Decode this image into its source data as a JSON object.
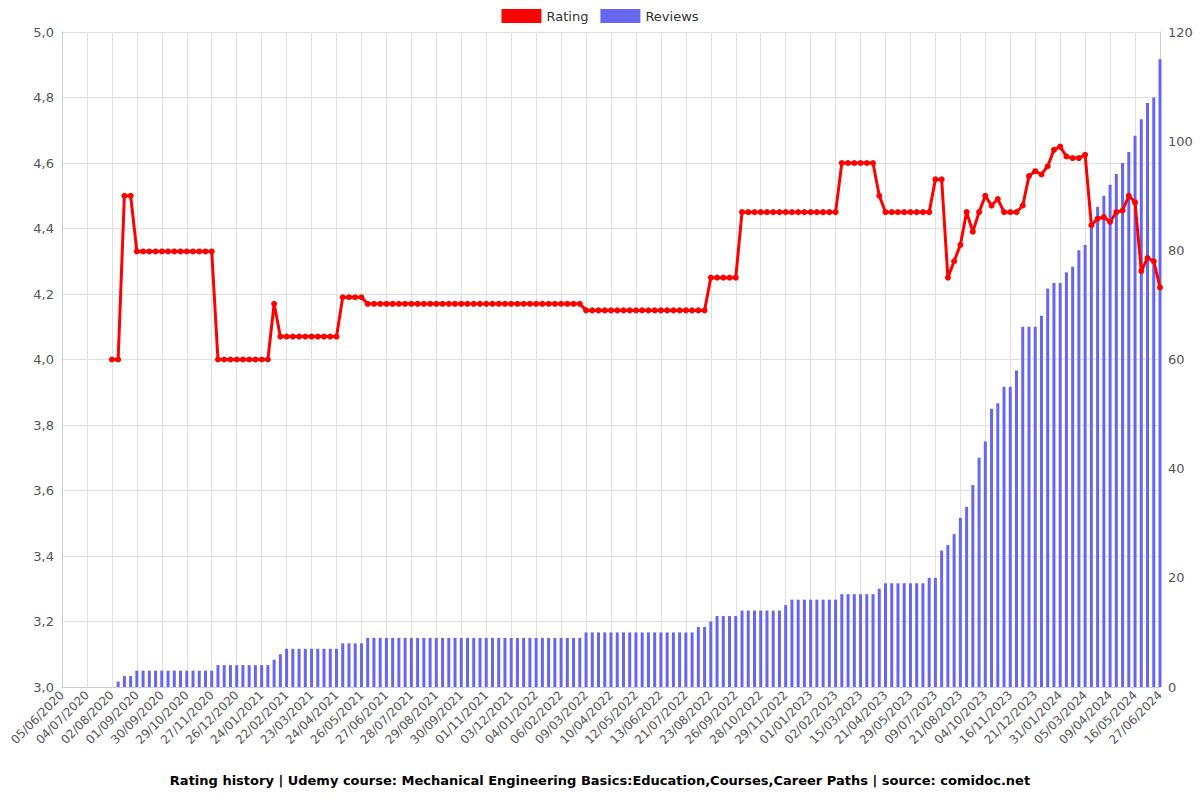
{
  "chart_data": {
    "type": "line",
    "title": "Rating history | Udemy course: Mechanical Engineering Basics:Education,Courses,Career Paths | source: comidoc.net",
    "categories": [
      "05/06/2020",
      null,
      null,
      null,
      "04/07/2020",
      null,
      null,
      null,
      "02/08/2020",
      null,
      null,
      null,
      "01/09/2020",
      null,
      null,
      null,
      "30/09/2020",
      null,
      null,
      null,
      "29/10/2020",
      null,
      null,
      null,
      "27/11/2020",
      null,
      null,
      null,
      "26/12/2020",
      null,
      null,
      null,
      "24/01/2021",
      null,
      null,
      null,
      "22/02/2021",
      null,
      null,
      null,
      "23/03/2021",
      null,
      null,
      null,
      "24/04/2021",
      null,
      null,
      null,
      "26/05/2021",
      null,
      null,
      null,
      "27/06/2021",
      null,
      null,
      null,
      "28/07/2021",
      null,
      null,
      null,
      "29/08/2021",
      null,
      null,
      null,
      "30/09/2021",
      null,
      null,
      null,
      "01/11/2021",
      null,
      null,
      null,
      "03/12/2021",
      null,
      null,
      null,
      "04/01/2022",
      null,
      null,
      null,
      "06/02/2022",
      null,
      null,
      null,
      "09/03/2022",
      null,
      null,
      null,
      "10/04/2022",
      null,
      null,
      null,
      "12/05/2022",
      null,
      null,
      null,
      "13/06/2022",
      null,
      null,
      null,
      "21/07/2022",
      null,
      null,
      null,
      "23/08/2022",
      null,
      null,
      null,
      "26/09/2022",
      null,
      null,
      null,
      "28/10/2022",
      null,
      null,
      null,
      "29/11/2022",
      null,
      null,
      null,
      "01/01/2023",
      null,
      null,
      null,
      "02/02/2023",
      null,
      null,
      null,
      "15/03/2023",
      null,
      null,
      null,
      "21/04/2023",
      null,
      null,
      null,
      "29/05/2023",
      null,
      null,
      null,
      "09/07/2023",
      null,
      null,
      null,
      "21/08/2023",
      null,
      null,
      null,
      "04/10/2023",
      null,
      null,
      null,
      "16/11/2023",
      null,
      null,
      null,
      "21/12/2023",
      null,
      null,
      null,
      "31/01/2024",
      null,
      null,
      null,
      "05/03/2024",
      null,
      null,
      null,
      "09/04/2024",
      null,
      null,
      null,
      "16/05/2024",
      null,
      null,
      null,
      "27/06/2024"
    ],
    "series": [
      {
        "name": "Rating",
        "type": "line",
        "color": "#ff0000",
        "marker": "circle",
        "values": [
          null,
          null,
          null,
          null,
          null,
          null,
          null,
          null,
          4.0,
          4.0,
          4.5,
          4.5,
          4.33,
          4.33,
          4.33,
          4.33,
          4.33,
          4.33,
          4.33,
          4.33,
          4.33,
          4.33,
          4.33,
          4.33,
          4.33,
          4.0,
          4.0,
          4.0,
          4.0,
          4.0,
          4.0,
          4.0,
          4.0,
          4.0,
          4.17,
          4.07,
          4.07,
          4.07,
          4.07,
          4.07,
          4.07,
          4.07,
          4.07,
          4.07,
          4.07,
          4.19,
          4.19,
          4.19,
          4.19,
          4.17,
          4.17,
          4.17,
          4.17,
          4.17,
          4.17,
          4.17,
          4.17,
          4.17,
          4.17,
          4.17,
          4.17,
          4.17,
          4.17,
          4.17,
          4.17,
          4.17,
          4.17,
          4.17,
          4.17,
          4.17,
          4.17,
          4.17,
          4.17,
          4.17,
          4.17,
          4.17,
          4.17,
          4.17,
          4.17,
          4.17,
          4.17,
          4.17,
          4.17,
          4.17,
          4.15,
          4.15,
          4.15,
          4.15,
          4.15,
          4.15,
          4.15,
          4.15,
          4.15,
          4.15,
          4.15,
          4.15,
          4.15,
          4.15,
          4.15,
          4.15,
          4.15,
          4.15,
          4.15,
          4.15,
          4.25,
          4.25,
          4.25,
          4.25,
          4.25,
          4.45,
          4.45,
          4.45,
          4.45,
          4.45,
          4.45,
          4.45,
          4.45,
          4.45,
          4.45,
          4.45,
          4.45,
          4.45,
          4.45,
          4.45,
          4.45,
          4.6,
          4.6,
          4.6,
          4.6,
          4.6,
          4.6,
          4.5,
          4.45,
          4.45,
          4.45,
          4.45,
          4.45,
          4.45,
          4.45,
          4.45,
          4.55,
          4.55,
          4.25,
          4.3,
          4.35,
          4.45,
          4.39,
          4.45,
          4.5,
          4.47,
          4.49,
          4.45,
          4.45,
          4.45,
          4.47,
          4.56,
          4.575,
          4.565,
          4.59,
          4.64,
          4.65,
          4.62,
          4.615,
          4.615,
          4.625,
          4.41,
          4.43,
          4.435,
          4.42,
          4.45,
          4.455,
          4.5,
          4.48,
          4.27,
          4.31,
          4.3,
          4.22
        ]
      },
      {
        "name": "Reviews",
        "type": "bar",
        "axis": "y2",
        "color": "#6666ee",
        "values": [
          null,
          null,
          null,
          null,
          null,
          null,
          null,
          null,
          null,
          1,
          2,
          2,
          3,
          3,
          3,
          3,
          3,
          3,
          3,
          3,
          3,
          3,
          3,
          3,
          3,
          4,
          4,
          4,
          4,
          4,
          4,
          4,
          4,
          4,
          5,
          6,
          7,
          7,
          7,
          7,
          7,
          7,
          7,
          7,
          7,
          8,
          8,
          8,
          8,
          9,
          9,
          9,
          9,
          9,
          9,
          9,
          9,
          9,
          9,
          9,
          9,
          9,
          9,
          9,
          9,
          9,
          9,
          9,
          9,
          9,
          9,
          9,
          9,
          9,
          9,
          9,
          9,
          9,
          9,
          9,
          9,
          9,
          9,
          9,
          10,
          10,
          10,
          10,
          10,
          10,
          10,
          10,
          10,
          10,
          10,
          10,
          10,
          10,
          10,
          10,
          10,
          10,
          11,
          11,
          12,
          13,
          13,
          13,
          13,
          14,
          14,
          14,
          14,
          14,
          14,
          14,
          15,
          16,
          16,
          16,
          16,
          16,
          16,
          16,
          16,
          17,
          17,
          17,
          17,
          17,
          17,
          18,
          19,
          19,
          19,
          19,
          19,
          19,
          19,
          20,
          20,
          25,
          26,
          28,
          31,
          33,
          37,
          42,
          45,
          51,
          52,
          55,
          55,
          58,
          66,
          66,
          66,
          68,
          73,
          74,
          74,
          76,
          77,
          80,
          81,
          85,
          88,
          90,
          92,
          94,
          96,
          98,
          101,
          104,
          107,
          108,
          115
        ]
      }
    ],
    "ylim": [
      3,
      5
    ],
    "yticks": [
      {
        "value": 3,
        "label": "3,0"
      },
      {
        "value": 3.2,
        "label": "3,2"
      },
      {
        "value": 3.4,
        "label": "3,4"
      },
      {
        "value": 3.6,
        "label": "3,6"
      },
      {
        "value": 3.8,
        "label": "3,8"
      },
      {
        "value": 4,
        "label": "4,0"
      },
      {
        "value": 4.2,
        "label": "4,2"
      },
      {
        "value": 4.4,
        "label": "4,4"
      },
      {
        "value": 4.6,
        "label": "4,6"
      },
      {
        "value": 4.8,
        "label": "4,8"
      },
      {
        "value": 5,
        "label": "5,0"
      }
    ],
    "y2lim": [
      0,
      120
    ],
    "y2ticks": [
      0,
      20,
      40,
      60,
      80,
      100,
      120
    ],
    "grid": true,
    "legend": "top"
  }
}
